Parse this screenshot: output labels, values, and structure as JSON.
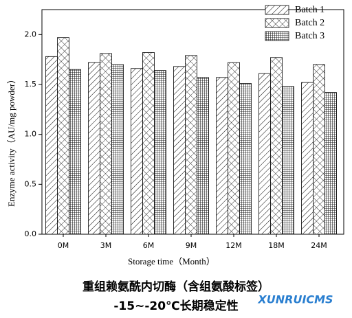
{
  "chart_data": {
    "type": "bar",
    "categories": [
      "0M",
      "3M",
      "6M",
      "9M",
      "12M",
      "18M",
      "24M"
    ],
    "series": [
      {
        "name": "Batch 1",
        "color": "#000000",
        "values": [
          1.78,
          1.72,
          1.66,
          1.68,
          1.57,
          1.61,
          1.52
        ]
      },
      {
        "name": "Batch 2",
        "color": "#000000",
        "values": [
          1.97,
          1.81,
          1.82,
          1.79,
          1.72,
          1.77,
          1.7
        ]
      },
      {
        "name": "Batch 3",
        "color": "#000000",
        "values": [
          1.65,
          1.7,
          1.64,
          1.57,
          1.51,
          1.48,
          1.42
        ]
      }
    ],
    "ylim": [
      0,
      2.25
    ],
    "yticks": [
      {
        "value": 0,
        "label": "0.0"
      },
      {
        "value": 0.5,
        "label": "0.5"
      },
      {
        "value": 1,
        "label": "1.0"
      },
      {
        "value": 1.5,
        "label": "1.5"
      },
      {
        "value": 2,
        "label": "2.0"
      }
    ],
    "xlabel": "Storage time（Month）",
    "ylabel": "Enzyme activity（AU/mg powder）",
    "legend": "top-right",
    "caption": [
      "重组赖氨酰内切酶（含组氨酸标签）",
      "-15~-20℃长期稳定性"
    ],
    "watermark": "XUNRUICMS"
  }
}
